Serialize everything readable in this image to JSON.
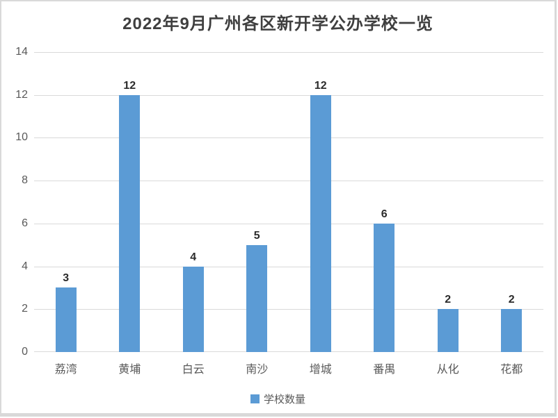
{
  "title": "2022年9月广州各区新开学公办学校一览",
  "legend": {
    "label": "学校数量"
  },
  "colors": {
    "bar": "#5b9bd5",
    "gridline": "#d9d9d9",
    "axis_label": "#595959",
    "data_label": "#2b2b2b",
    "title": "#3f3f3f",
    "border": "#d9d9d9"
  },
  "chart_data": {
    "type": "bar",
    "title": "2022年9月广州各区新开学公办学校一览",
    "categories": [
      "荔湾",
      "黄埔",
      "白云",
      "南沙",
      "增城",
      "番禺",
      "从化",
      "花都"
    ],
    "series": [
      {
        "name": "学校数量",
        "values": [
          3,
          12,
          4,
          5,
          12,
          6,
          2,
          2
        ]
      }
    ],
    "data_labels": [
      3,
      12,
      4,
      5,
      12,
      6,
      2,
      2
    ],
    "xlabel": "",
    "ylabel": "",
    "ylim": [
      0,
      14
    ],
    "yticks": [
      0,
      2,
      4,
      6,
      8,
      10,
      12,
      14
    ],
    "grid": true,
    "legend_position": "bottom"
  }
}
